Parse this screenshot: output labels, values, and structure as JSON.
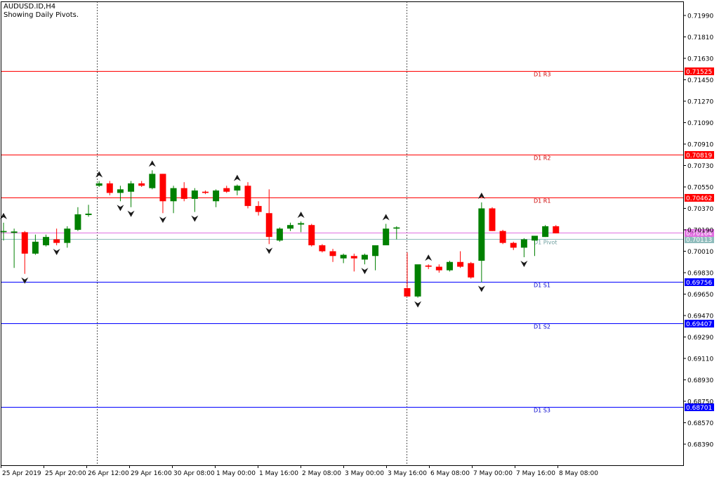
{
  "header": {
    "symbol_line": "AUDUSD.ID,H4",
    "indicator_line": "Showing Daily Pivots."
  },
  "colors": {
    "bull": "#008000",
    "bear": "#ff0000",
    "resistance": "#ff0000",
    "support": "#0000ff",
    "pivot": "#8fbcbc",
    "current_price": "#e070e0",
    "resistance_label": "#cc0000",
    "support_label": "#0000cc",
    "pivot_label": "#6f9f9f"
  },
  "chart_data": {
    "type": "candlestick",
    "title": "AUDUSD.ID,H4",
    "subtitle": "Showing Daily Pivots.",
    "y_ticks": [
      "0.71990",
      "0.71810",
      "0.71630",
      "0.71450",
      "0.71270",
      "0.71090",
      "0.70910",
      "0.70730",
      "0.70550",
      "0.70370",
      "0.70190",
      "0.70010",
      "0.69830",
      "0.69650",
      "0.69470",
      "0.69290",
      "0.69110",
      "0.68930",
      "0.68750",
      "0.68570",
      "0.68390"
    ],
    "x_ticks": [
      "25 Apr 2019",
      "25 Apr 20:00",
      "26 Apr 12:00",
      "29 Apr 16:00",
      "30 Apr 08:00",
      "1 May 00:00",
      "1 May 16:00",
      "2 May 08:00",
      "3 May 00:00",
      "3 May 16:00",
      "6 May 08:00",
      "7 May 00:00",
      "7 May 16:00",
      "8 May 08:00"
    ],
    "ylim": [
      0.6826,
      0.7216
    ],
    "separators": [
      "26 Apr 12:00",
      "3 May 16:00"
    ],
    "pivot_levels": [
      {
        "name": "D1 R3",
        "value": 0.71525,
        "label": "0.71525",
        "kind": "resistance"
      },
      {
        "name": "D1 R2",
        "value": 0.70819,
        "label": "0.70819",
        "kind": "resistance"
      },
      {
        "name": "D1 R1",
        "value": 0.70462,
        "label": "0.70462",
        "kind": "resistance"
      },
      {
        "name": "D1 Pivot",
        "value": 0.70113,
        "label": "0.70113",
        "kind": "pivot"
      },
      {
        "name": "D1 S1",
        "value": 0.69756,
        "label": "0.69756",
        "kind": "support"
      },
      {
        "name": "D1 S2",
        "value": 0.69407,
        "label": "0.69407",
        "kind": "support"
      },
      {
        "name": "D1 S3",
        "value": 0.68701,
        "label": "0.68701",
        "kind": "support"
      }
    ],
    "current_price": {
      "value": 0.70164,
      "label": "0.70164"
    },
    "candles": [
      {
        "o": 0.7017,
        "h": 0.7025,
        "l": 0.701,
        "c": 0.7018
      },
      {
        "o": 0.7017,
        "h": 0.702,
        "l": 0.6987,
        "c": 0.7017
      },
      {
        "o": 0.7017,
        "h": 0.7018,
        "l": 0.6982,
        "c": 0.6999
      },
      {
        "o": 0.6999,
        "h": 0.7015,
        "l": 0.6998,
        "c": 0.7009
      },
      {
        "o": 0.7006,
        "h": 0.7015,
        "l": 0.7005,
        "c": 0.7013
      },
      {
        "o": 0.7011,
        "h": 0.702,
        "l": 0.7006,
        "c": 0.7008
      },
      {
        "o": 0.7008,
        "h": 0.7022,
        "l": 0.7004,
        "c": 0.702
      },
      {
        "o": 0.7019,
        "h": 0.7038,
        "l": 0.7018,
        "c": 0.7032
      },
      {
        "o": 0.7032,
        "h": 0.704,
        "l": 0.703,
        "c": 0.7032
      },
      {
        "o": 0.7056,
        "h": 0.706,
        "l": 0.7055,
        "c": 0.7058
      },
      {
        "o": 0.7058,
        "h": 0.706,
        "l": 0.7048,
        "c": 0.705
      },
      {
        "o": 0.705,
        "h": 0.7056,
        "l": 0.7043,
        "c": 0.7053
      },
      {
        "o": 0.7051,
        "h": 0.706,
        "l": 0.7038,
        "c": 0.7058
      },
      {
        "o": 0.7058,
        "h": 0.706,
        "l": 0.7055,
        "c": 0.7056
      },
      {
        "o": 0.7054,
        "h": 0.7069,
        "l": 0.7053,
        "c": 0.7066
      },
      {
        "o": 0.7066,
        "h": 0.7066,
        "l": 0.7033,
        "c": 0.7043
      },
      {
        "o": 0.7043,
        "h": 0.7056,
        "l": 0.7033,
        "c": 0.7054
      },
      {
        "o": 0.7054,
        "h": 0.7059,
        "l": 0.7043,
        "c": 0.7045
      },
      {
        "o": 0.7045,
        "h": 0.7054,
        "l": 0.7034,
        "c": 0.7052
      },
      {
        "o": 0.7051,
        "h": 0.7052,
        "l": 0.7049,
        "c": 0.705
      },
      {
        "o": 0.7043,
        "h": 0.7053,
        "l": 0.7038,
        "c": 0.7052
      },
      {
        "o": 0.7054,
        "h": 0.7056,
        "l": 0.705,
        "c": 0.7051
      },
      {
        "o": 0.7052,
        "h": 0.7057,
        "l": 0.7048,
        "c": 0.7056
      },
      {
        "o": 0.7056,
        "h": 0.7059,
        "l": 0.7037,
        "c": 0.7039
      },
      {
        "o": 0.7039,
        "h": 0.7043,
        "l": 0.7031,
        "c": 0.7034
      },
      {
        "o": 0.7033,
        "h": 0.7053,
        "l": 0.7007,
        "c": 0.7013
      },
      {
        "o": 0.701,
        "h": 0.7021,
        "l": 0.7009,
        "c": 0.702
      },
      {
        "o": 0.702,
        "h": 0.7025,
        "l": 0.7018,
        "c": 0.7023
      },
      {
        "o": 0.7024,
        "h": 0.7026,
        "l": 0.7017,
        "c": 0.7024
      },
      {
        "o": 0.7023,
        "h": 0.7024,
        "l": 0.7005,
        "c": 0.7006
      },
      {
        "o": 0.7006,
        "h": 0.7007,
        "l": 0.7,
        "c": 0.7001
      },
      {
        "o": 0.7001,
        "h": 0.7003,
        "l": 0.6992,
        "c": 0.6997
      },
      {
        "o": 0.6995,
        "h": 0.6999,
        "l": 0.6991,
        "c": 0.6998
      },
      {
        "o": 0.6997,
        "h": 0.6999,
        "l": 0.6984,
        "c": 0.6995
      },
      {
        "o": 0.6994,
        "h": 0.6999,
        "l": 0.699,
        "c": 0.6998
      },
      {
        "o": 0.6997,
        "h": 0.7006,
        "l": 0.6985,
        "c": 0.7006
      },
      {
        "o": 0.7006,
        "h": 0.7024,
        "l": 0.7006,
        "c": 0.702
      },
      {
        "o": 0.702,
        "h": 0.7022,
        "l": 0.7011,
        "c": 0.7021
      },
      {
        "o": 0.697,
        "h": 0.7,
        "l": 0.6965,
        "c": 0.6963
      },
      {
        "o": 0.6963,
        "h": 0.6989,
        "l": 0.6962,
        "c": 0.699
      },
      {
        "o": 0.6989,
        "h": 0.699,
        "l": 0.6986,
        "c": 0.6988
      },
      {
        "o": 0.6988,
        "h": 0.699,
        "l": 0.6983,
        "c": 0.6985
      },
      {
        "o": 0.6985,
        "h": 0.6993,
        "l": 0.6984,
        "c": 0.6992
      },
      {
        "o": 0.6992,
        "h": 0.7001,
        "l": 0.6987,
        "c": 0.6988
      },
      {
        "o": 0.6991,
        "h": 0.6992,
        "l": 0.6978,
        "c": 0.6979
      },
      {
        "o": 0.6993,
        "h": 0.7042,
        "l": 0.6975,
        "c": 0.7037
      },
      {
        "o": 0.7037,
        "h": 0.7038,
        "l": 0.7018,
        "c": 0.7018
      },
      {
        "o": 0.7018,
        "h": 0.7019,
        "l": 0.7007,
        "c": 0.7008
      },
      {
        "o": 0.7008,
        "h": 0.7009,
        "l": 0.7002,
        "c": 0.7004
      },
      {
        "o": 0.7004,
        "h": 0.7012,
        "l": 0.6996,
        "c": 0.7011
      },
      {
        "o": 0.701,
        "h": 0.7014,
        "l": 0.6997,
        "c": 0.7014
      },
      {
        "o": 0.7013,
        "h": 0.7023,
        "l": 0.7013,
        "c": 0.7022
      },
      {
        "o": 0.7022,
        "h": 0.7023,
        "l": 0.7016,
        "c": 0.7016
      }
    ],
    "fractals": [
      {
        "i": 0,
        "dir": "up"
      },
      {
        "i": 2,
        "dir": "down"
      },
      {
        "i": 5,
        "dir": "down"
      },
      {
        "i": 9,
        "dir": "up"
      },
      {
        "i": 11,
        "dir": "down"
      },
      {
        "i": 12,
        "dir": "down"
      },
      {
        "i": 14,
        "dir": "up"
      },
      {
        "i": 15,
        "dir": "down"
      },
      {
        "i": 18,
        "dir": "down"
      },
      {
        "i": 22,
        "dir": "up"
      },
      {
        "i": 25,
        "dir": "down"
      },
      {
        "i": 28,
        "dir": "up"
      },
      {
        "i": 34,
        "dir": "down"
      },
      {
        "i": 36,
        "dir": "up"
      },
      {
        "i": 39,
        "dir": "down"
      },
      {
        "i": 40,
        "dir": "up"
      },
      {
        "i": 45,
        "dir": "up"
      },
      {
        "i": 45,
        "dir": "down"
      },
      {
        "i": 49,
        "dir": "down"
      }
    ]
  }
}
